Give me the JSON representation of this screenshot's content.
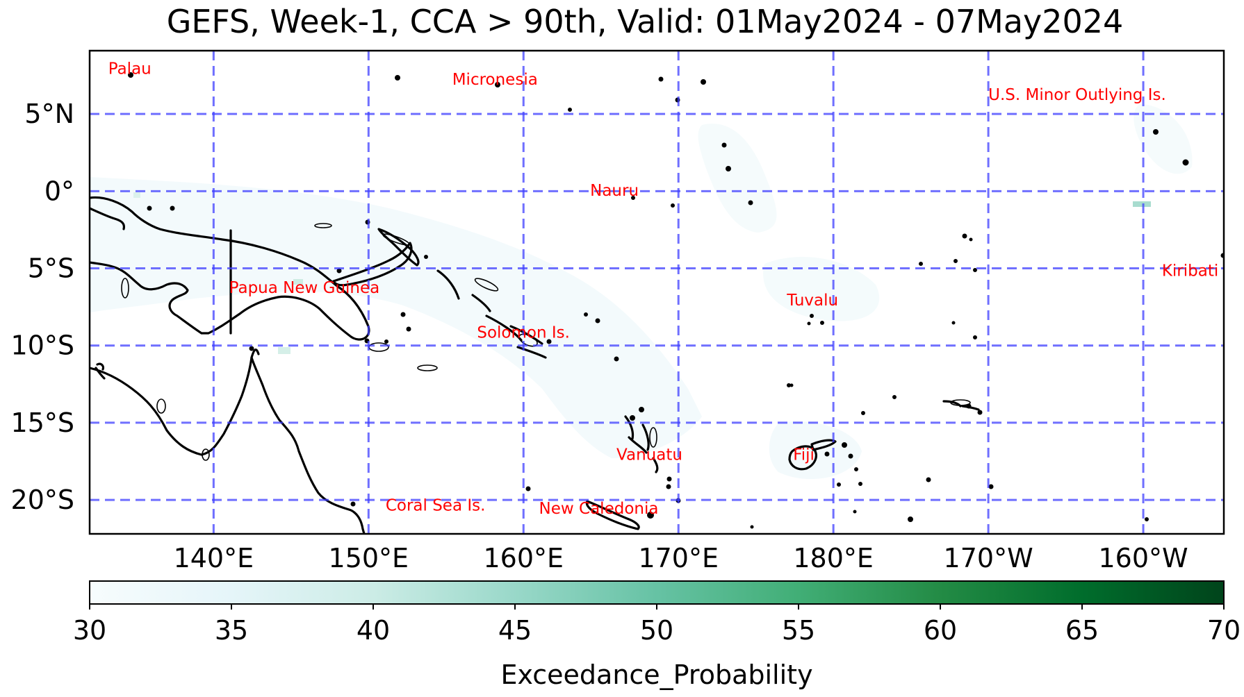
{
  "title": "GEFS, Week-1, CCA > 90th, Valid: 01May2024 - 07May2024",
  "map": {
    "lon_range": [
      132,
      205.2
    ],
    "lat_range": [
      -22.2,
      9.1
    ],
    "longitude_ticks": [
      {
        "value": 140,
        "label": "140°E"
      },
      {
        "value": 150,
        "label": "150°E"
      },
      {
        "value": 160,
        "label": "160°E"
      },
      {
        "value": 170,
        "label": "170°E"
      },
      {
        "value": 180,
        "label": "180°E"
      },
      {
        "value": 190,
        "label": "170°W"
      },
      {
        "value": 200,
        "label": "160°W"
      }
    ],
    "latitude_ticks": [
      {
        "value": 5,
        "label": "5°N"
      },
      {
        "value": 0,
        "label": "0°"
      },
      {
        "value": -5,
        "label": "5°S"
      },
      {
        "value": -10,
        "label": "10°S"
      },
      {
        "value": -15,
        "label": "15°S"
      },
      {
        "value": -20,
        "label": "20°S"
      }
    ],
    "gridlines": true,
    "gridline_color": "#3f3fff",
    "coastline_color": "#000000",
    "label_color": "#ff0000",
    "country_labels": [
      {
        "name": "Palau",
        "lon": 133.2,
        "lat": 7.6
      },
      {
        "name": "Micronesia",
        "lon": 155.4,
        "lat": 6.9
      },
      {
        "name": "U.S. Minor Outlying Is.",
        "lon": 190.0,
        "lat": 5.9
      },
      {
        "name": "Nauru",
        "lon": 164.3,
        "lat": -0.3
      },
      {
        "name": "Kiribati",
        "lon": 201.2,
        "lat": -5.5
      },
      {
        "name": "Papua New Guinea",
        "lon": 141.0,
        "lat": -6.6
      },
      {
        "name": "Tuvalu",
        "lon": 177.0,
        "lat": -7.4
      },
      {
        "name": "Solomon Is.",
        "lon": 157.0,
        "lat": -9.5
      },
      {
        "name": "Vanuatu",
        "lon": 166.0,
        "lat": -17.4
      },
      {
        "name": "Fiji",
        "lon": 177.4,
        "lat": -17.4
      },
      {
        "name": "Coral Sea Is.",
        "lon": 151.1,
        "lat": -20.7
      },
      {
        "name": "New Caledonia",
        "lon": 161.0,
        "lat": -20.9
      }
    ]
  },
  "colorbar": {
    "label": "Exceedance_Probability",
    "min": 30,
    "max": 70,
    "ticks": [
      {
        "value": 30,
        "label": "30"
      },
      {
        "value": 35,
        "label": "35"
      },
      {
        "value": 40,
        "label": "40"
      },
      {
        "value": 45,
        "label": "45"
      },
      {
        "value": 50,
        "label": "50"
      },
      {
        "value": 55,
        "label": "55"
      },
      {
        "value": 60,
        "label": "60"
      },
      {
        "value": 65,
        "label": "65"
      },
      {
        "value": 70,
        "label": "70"
      }
    ],
    "colormap": [
      "#f7fcfd",
      "#e5f5f9",
      "#ccece6",
      "#99d8c9",
      "#66c2a4",
      "#41ae76",
      "#238b45",
      "#006d2c",
      "#00441b"
    ]
  }
}
